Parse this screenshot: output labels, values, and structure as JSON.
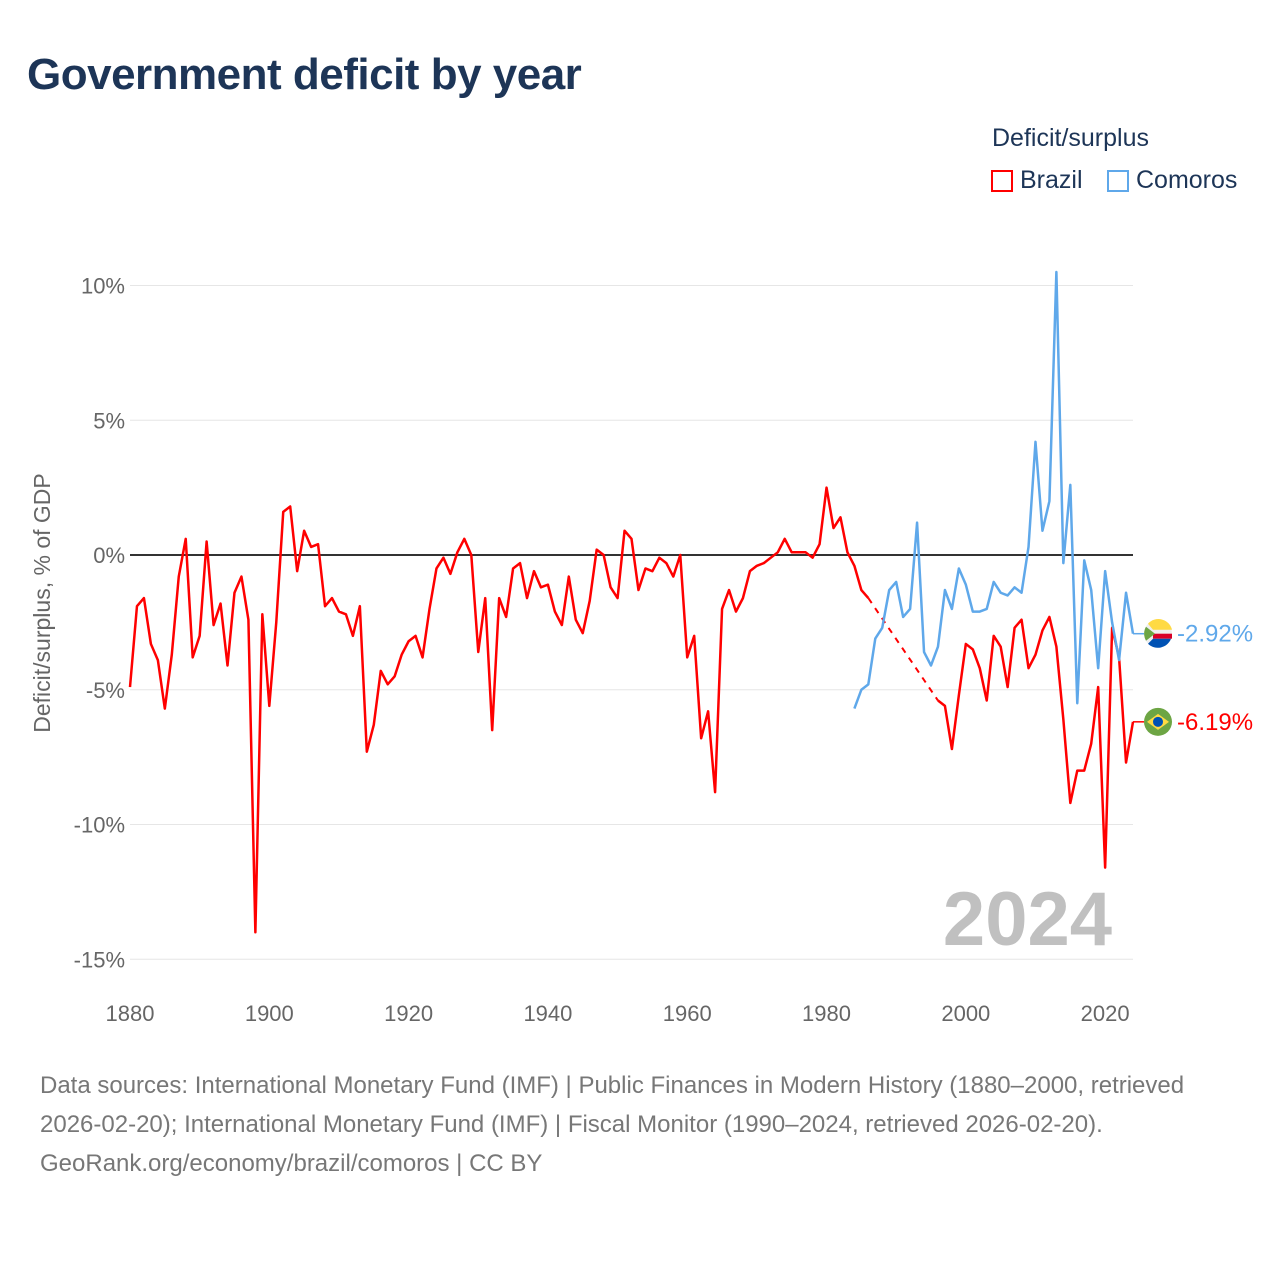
{
  "chart_data": {
    "type": "line",
    "title": "Government deficit by year",
    "ylabel": "Deficit/surplus, % of GDP",
    "xlabel": "",
    "xlim": [
      1880,
      2024
    ],
    "ylim": [
      -15,
      10.5
    ],
    "x_ticks": [
      1880,
      1900,
      1920,
      1940,
      1960,
      1980,
      2000,
      2020
    ],
    "x_tick_labels": [
      "1880",
      "1900",
      "1920",
      "1940",
      "1960",
      "1980",
      "2000",
      "2020"
    ],
    "y_ticks": [
      10,
      5,
      0,
      -5,
      -10,
      -15
    ],
    "y_tick_labels": [
      "10%",
      "5%",
      "0%",
      "-5%",
      "-10%",
      "-15%"
    ],
    "grid": true,
    "legend_title": "Deficit/surplus",
    "legend_position": "top-right",
    "year_watermark": "2024",
    "series": [
      {
        "name": "Brazil",
        "color": "#ff0000",
        "start_year": 1880,
        "end_label": "-6.19%",
        "values": [
          -4.9,
          -1.9,
          -1.6,
          -3.3,
          -3.9,
          -5.7,
          -3.7,
          -0.8,
          0.6,
          -3.8,
          -3.0,
          0.5,
          -2.6,
          -1.8,
          -4.1,
          -1.4,
          -0.8,
          -2.4,
          -14.0,
          -2.2,
          -5.6,
          -2.5,
          1.6,
          1.8,
          -0.6,
          0.9,
          0.3,
          0.4,
          -1.9,
          -1.6,
          -2.1,
          -2.2,
          -3.0,
          -1.9,
          -7.3,
          -6.3,
          -4.3,
          -4.8,
          -4.5,
          -3.7,
          -3.2,
          -3.0,
          -3.8,
          -2.0,
          -0.5,
          -0.1,
          -0.7,
          0.1,
          0.6,
          0.0,
          -3.6,
          -1.6,
          -6.5,
          -1.6,
          -2.3,
          -0.5,
          -0.3,
          -1.6,
          -0.6,
          -1.2,
          -1.1,
          -2.1,
          -2.6,
          -0.8,
          -2.4,
          -2.9,
          -1.7,
          0.2,
          0.0,
          -1.2,
          -1.6,
          0.9,
          0.6,
          -1.3,
          -0.5,
          -0.6,
          -0.1,
          -0.3,
          -0.8,
          0.0,
          -3.8,
          -3.0,
          -6.8,
          -5.8,
          -8.8,
          -2.0,
          -1.3,
          -2.1,
          -1.6,
          -0.6,
          -0.4,
          -0.3,
          -0.1,
          0.1,
          0.6,
          0.1,
          0.1,
          0.1,
          -0.1,
          0.4,
          2.5,
          1.0,
          1.4,
          0.1,
          -0.4,
          -1.3,
          -1.6,
          null,
          null,
          null,
          null,
          null,
          null,
          null,
          null,
          null,
          -5.4,
          -5.6,
          -7.2,
          -5.2,
          -3.3,
          -3.5,
          -4.2,
          -5.4,
          -3.0,
          -3.4,
          -4.9,
          -2.7,
          -2.4,
          -4.2,
          -3.7,
          -2.8,
          -2.3,
          -3.4,
          -6.1,
          -9.2,
          -8.0,
          -8.0,
          -7.0,
          -4.9,
          -11.6,
          -2.7,
          -3.8,
          -7.7,
          -6.19
        ]
      },
      {
        "name": "Comoros",
        "color": "#5fa8ea",
        "start_year": 1984,
        "end_label": "-2.92%",
        "values": [
          -5.7,
          -5.0,
          -4.8,
          -3.1,
          -2.7,
          -1.3,
          -1.0,
          -2.3,
          -2.0,
          1.2,
          -3.6,
          -4.1,
          -3.4,
          -1.3,
          -2.0,
          -0.5,
          -1.1,
          -2.1,
          -2.1,
          -2.0,
          -1.0,
          -1.4,
          -1.5,
          -1.2,
          -1.4,
          0.3,
          4.2,
          0.9,
          2.0,
          10.5,
          -0.3,
          2.6,
          -5.5,
          -0.2,
          -1.3,
          -4.2,
          -0.6,
          -2.5,
          -3.9,
          -1.4,
          -2.92
        ]
      }
    ]
  },
  "footer": {
    "sources": "Data sources: International Monetary Fund (IMF) | Public Finances in Modern History (1880–2000, retrieved 2026-02-20); International Monetary Fund (IMF) | Fiscal Monitor (1990–2024, retrieved 2026-02-20).",
    "credit": "GeoRank.org/economy/brazil/comoros | CC BY"
  }
}
